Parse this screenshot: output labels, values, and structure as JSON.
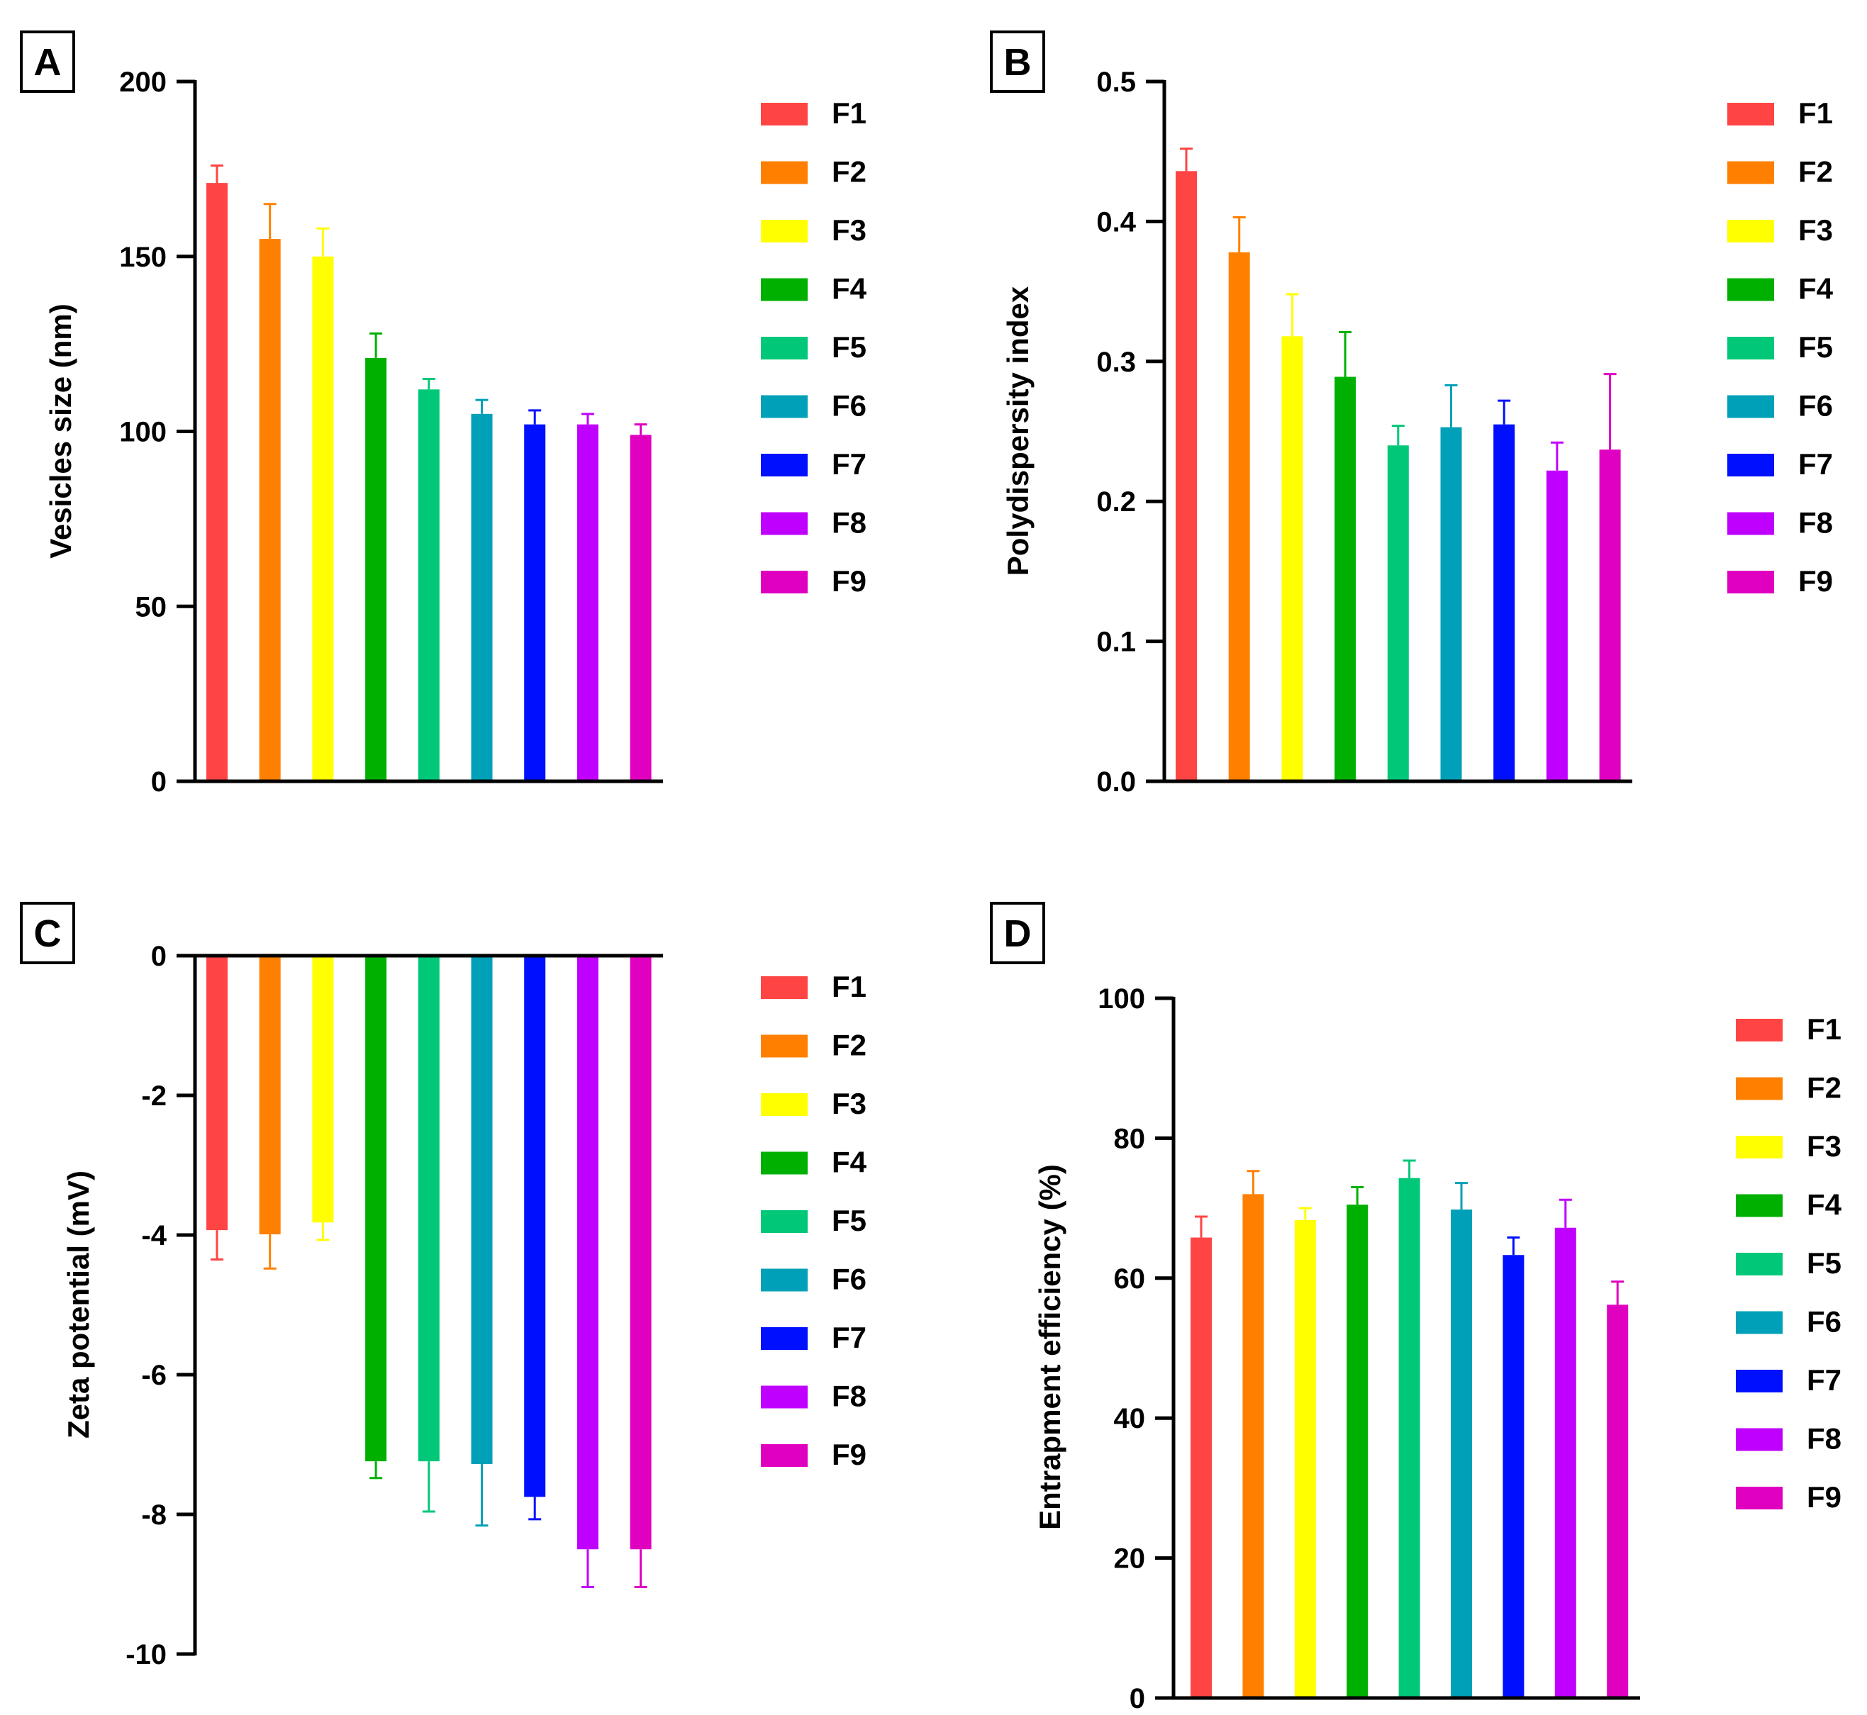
{
  "chart_data": [
    {
      "panel": "A",
      "type": "bar",
      "ylabel": "Vesicles size (nm)",
      "ylim": [
        0,
        200
      ],
      "yticks": [
        0,
        50,
        100,
        150,
        200
      ],
      "categories": [
        "F1",
        "F2",
        "F3",
        "F4",
        "F5",
        "F6",
        "F7",
        "F8",
        "F9"
      ],
      "values": [
        171,
        155,
        150,
        121,
        112,
        105,
        102,
        102,
        99
      ],
      "errors": [
        5,
        10,
        8,
        7,
        3,
        4,
        4,
        3,
        3
      ],
      "legend": [
        "F1",
        "F2",
        "F3",
        "F4",
        "F5",
        "F6",
        "F7",
        "F8",
        "F9"
      ]
    },
    {
      "panel": "B",
      "type": "bar",
      "ylabel": "Polydispersity index",
      "ylim": [
        0,
        0.5
      ],
      "yticks": [
        "0.0",
        "0.1",
        "0.2",
        "0.3",
        "0.4",
        "0.5"
      ],
      "categories": [
        "F1",
        "F2",
        "F3",
        "F4",
        "F5",
        "F6",
        "F7",
        "F8",
        "F9"
      ],
      "values": [
        0.436,
        0.378,
        0.318,
        0.289,
        0.24,
        0.253,
        0.255,
        0.222,
        0.237
      ],
      "errors": [
        0.016,
        0.025,
        0.03,
        0.032,
        0.014,
        0.03,
        0.017,
        0.02,
        0.054
      ],
      "legend": [
        "F1",
        "F2",
        "F3",
        "F4",
        "F5",
        "F6",
        "F7",
        "F8",
        "F9"
      ]
    },
    {
      "panel": "C",
      "type": "bar",
      "ylabel": "Zeta potential (mV)",
      "ylim": [
        -10,
        0
      ],
      "yticks": [
        0,
        -2,
        -4,
        -6,
        -8,
        -10
      ],
      "categories": [
        "F1",
        "F2",
        "F3",
        "F4",
        "F5",
        "F6",
        "F7",
        "F8",
        "F9"
      ],
      "values": [
        -3.93,
        -3.99,
        -3.82,
        -7.24,
        -7.24,
        -7.28,
        -7.75,
        -8.5,
        -8.5
      ],
      "errors": [
        0.42,
        0.49,
        0.25,
        0.24,
        0.72,
        0.88,
        0.32,
        0.54,
        0.54
      ],
      "legend": [
        "F1",
        "F2",
        "F3",
        "F4",
        "F5",
        "F6",
        "F7",
        "F8",
        "F9"
      ]
    },
    {
      "panel": "D",
      "type": "bar",
      "ylabel": "Entrapment efficiency (%)",
      "ylim": [
        0,
        100
      ],
      "yticks": [
        0,
        20,
        40,
        60,
        80,
        100
      ],
      "categories": [
        "F1",
        "F2",
        "F3",
        "F4",
        "F5",
        "F6",
        "F7",
        "F8",
        "F9"
      ],
      "values": [
        65.8,
        72.0,
        68.3,
        70.5,
        74.3,
        69.8,
        63.3,
        67.2,
        56.2
      ],
      "errors": [
        3.0,
        3.3,
        1.7,
        2.5,
        2.5,
        3.8,
        2.5,
        4.0,
        3.3
      ],
      "legend": [
        "F1",
        "F2",
        "F3",
        "F4",
        "F5",
        "F6",
        "F7",
        "F8",
        "F9"
      ]
    }
  ],
  "colors": [
    "#ff4444",
    "#ff8000",
    "#ffff00",
    "#00b000",
    "#00c878",
    "#00a0b8",
    "#0010ff",
    "#c000ff",
    "#e000c0"
  ]
}
